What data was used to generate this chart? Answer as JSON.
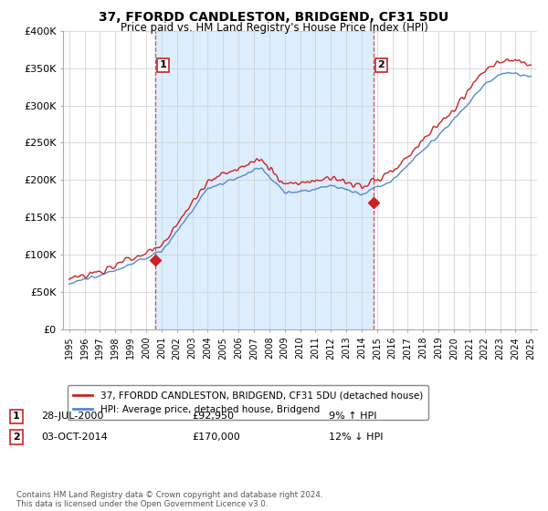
{
  "title": "37, FFORDD CANDLESTON, BRIDGEND, CF31 5DU",
  "subtitle": "Price paid vs. HM Land Registry's House Price Index (HPI)",
  "legend_line1": "37, FFORDD CANDLESTON, BRIDGEND, CF31 5DU (detached house)",
  "legend_line2": "HPI: Average price, detached house, Bridgend",
  "annotation1_date": "28-JUL-2000",
  "annotation1_price": "£92,950",
  "annotation1_hpi": "9% ↑ HPI",
  "annotation2_date": "03-OCT-2014",
  "annotation2_price": "£170,000",
  "annotation2_hpi": "12% ↓ HPI",
  "footer": "Contains HM Land Registry data © Crown copyright and database right 2024.\nThis data is licensed under the Open Government Licence v3.0.",
  "ylim": [
    0,
    400000
  ],
  "yticks": [
    0,
    50000,
    100000,
    150000,
    200000,
    250000,
    300000,
    350000,
    400000
  ],
  "ytick_labels": [
    "£0",
    "£50K",
    "£100K",
    "£150K",
    "£200K",
    "£250K",
    "£300K",
    "£350K",
    "£400K"
  ],
  "marker1_x": 2000.58,
  "marker1_y": 92950,
  "marker2_x": 2014.75,
  "marker2_y": 170000,
  "vline1_x": 2000.58,
  "vline2_x": 2014.75,
  "hpi_color": "#5588cc",
  "price_color": "#cc2222",
  "vline_color": "#cc2222",
  "fill_color": "#ddeeff",
  "background_color": "#ffffff",
  "grid_color": "#cccccc",
  "xlim_left": 1994.6,
  "xlim_right": 2025.4
}
